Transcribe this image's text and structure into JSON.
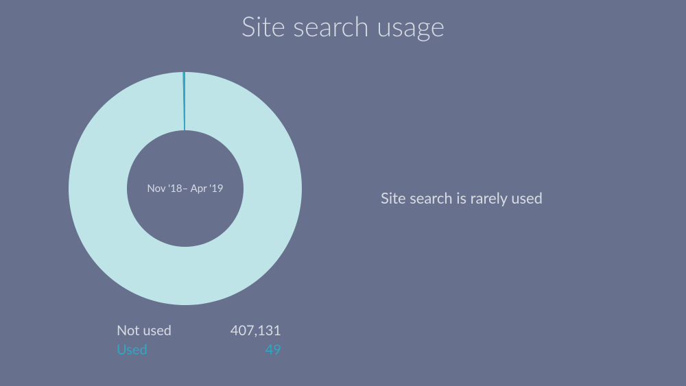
{
  "background_color": "#67718d",
  "text_color": "#d7dbe3",
  "title": "Site search usage",
  "title_fontsize": 40,
  "caption": "Site search is rarely used",
  "caption_fontsize": 22,
  "donut": {
    "type": "donut",
    "center_label": "Nov '18– Apr '19",
    "center_label_fontsize": 15,
    "outer_radius": 170,
    "inner_radius": 85,
    "slices": [
      {
        "name": "Not used",
        "value": 407131,
        "color": "#bfe4e8"
      },
      {
        "name": "Used",
        "value": 49,
        "color": "#2fa7c5"
      }
    ],
    "start_angle_deg": -90,
    "min_sliver_deg": 1.2
  },
  "legend": {
    "fontsize": 20,
    "rows": [
      {
        "label": "Not used",
        "value": "407,131",
        "color": "#d7dbe3"
      },
      {
        "label": "Used",
        "value": "49",
        "color": "#2fa7c5"
      }
    ]
  }
}
